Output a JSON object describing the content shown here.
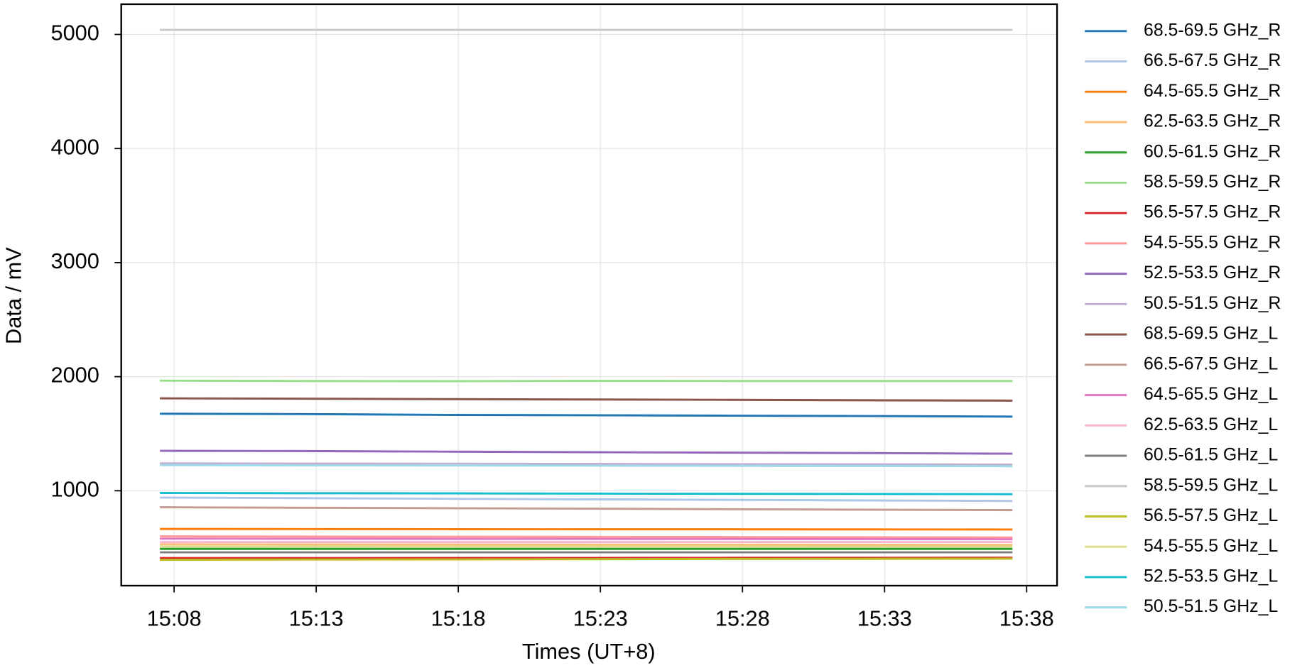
{
  "chart_data": {
    "type": "line",
    "x_label": "Times (UT+8)",
    "y_label": "Data / mV",
    "x": [
      907.5,
      912.5,
      917.5,
      922.5,
      927.5,
      932.5,
      937.5
    ],
    "xlim": [
      906.14,
      939.07
    ],
    "xticks": [
      {
        "value": 908,
        "label": "15:08"
      },
      {
        "value": 913,
        "label": "15:13"
      },
      {
        "value": 918,
        "label": "15:18"
      },
      {
        "value": 923,
        "label": "15:23"
      },
      {
        "value": 928,
        "label": "15:28"
      },
      {
        "value": 933,
        "label": "15:33"
      },
      {
        "value": 938,
        "label": "15:38"
      }
    ],
    "ylim": [
      168,
      5265
    ],
    "yticks": [
      1000,
      2000,
      3000,
      4000,
      5000
    ],
    "grid": true,
    "legend": "outside-right",
    "series": [
      {
        "name": "68.5-69.5 GHz_R",
        "color": "#1f77b4",
        "values": [
          1675,
          1672,
          1665,
          1662,
          1658,
          1655,
          1650
        ]
      },
      {
        "name": "66.5-67.5 GHz_R",
        "color": "#aec7e8",
        "values": [
          940,
          935,
          930,
          925,
          920,
          915,
          910
        ]
      },
      {
        "name": "64.5-65.5 GHz_R",
        "color": "#ff7f0e",
        "values": [
          665,
          664,
          663,
          662,
          662,
          661,
          660
        ]
      },
      {
        "name": "62.5-63.5 GHz_R",
        "color": "#ffbb78",
        "values": [
          530,
          529,
          528,
          527,
          527,
          526,
          525
        ]
      },
      {
        "name": "60.5-61.5 GHz_R",
        "color": "#2ca02c",
        "values": [
          490,
          490,
          490,
          490,
          490,
          490,
          490
        ]
      },
      {
        "name": "58.5-59.5 GHz_R",
        "color": "#98df8a",
        "values": [
          1965,
          1962,
          1960,
          1963,
          1962,
          1962,
          1962
        ]
      },
      {
        "name": "56.5-57.5 GHz_R",
        "color": "#d62728",
        "values": [
          410,
          410,
          411,
          411,
          412,
          412,
          413
        ]
      },
      {
        "name": "54.5-55.5 GHz_R",
        "color": "#ff9896",
        "values": [
          600,
          598,
          597,
          595,
          594,
          592,
          590
        ]
      },
      {
        "name": "52.5-53.5 GHz_R",
        "color": "#9467bd",
        "values": [
          1350,
          1348,
          1343,
          1338,
          1334,
          1330,
          1325
        ]
      },
      {
        "name": "50.5-51.5 GHz_R",
        "color": "#c5b0d5",
        "values": [
          1240,
          1238,
          1237,
          1235,
          1233,
          1232,
          1230
        ]
      },
      {
        "name": "68.5-69.5 GHz_L",
        "color": "#8c564b",
        "values": [
          1810,
          1807,
          1803,
          1800,
          1797,
          1793,
          1790
        ]
      },
      {
        "name": "66.5-67.5 GHz_L",
        "color": "#c49c94",
        "values": [
          855,
          851,
          847,
          843,
          838,
          834,
          830
        ]
      },
      {
        "name": "64.5-65.5 GHz_L",
        "color": "#e377c2",
        "values": [
          580,
          579,
          578,
          578,
          577,
          576,
          575
        ]
      },
      {
        "name": "62.5-63.5 GHz_L",
        "color": "#f7b6d2",
        "values": [
          550,
          550,
          550,
          550,
          550,
          550,
          550
        ]
      },
      {
        "name": "60.5-61.5 GHz_L",
        "color": "#7f7f7f",
        "values": [
          460,
          460,
          460,
          460,
          460,
          460,
          460
        ]
      },
      {
        "name": "58.5-59.5 GHz_L",
        "color": "#c7c7c7",
        "values": [
          5040,
          5040,
          5040,
          5040,
          5040,
          5040,
          5040
        ]
      },
      {
        "name": "56.5-57.5 GHz_L",
        "color": "#bcbd22",
        "values": [
          395,
          397,
          398,
          400,
          402,
          403,
          405
        ]
      },
      {
        "name": "54.5-55.5 GHz_L",
        "color": "#dbdb8d",
        "values": [
          510,
          510,
          510,
          510,
          510,
          510,
          510
        ]
      },
      {
        "name": "52.5-53.5 GHz_L",
        "color": "#17becf",
        "values": [
          980,
          978,
          977,
          975,
          973,
          972,
          970
        ]
      },
      {
        "name": "50.5-51.5 GHz_L",
        "color": "#9edae5",
        "values": [
          1225,
          1223,
          1222,
          1220,
          1218,
          1217,
          1215
        ]
      }
    ]
  }
}
